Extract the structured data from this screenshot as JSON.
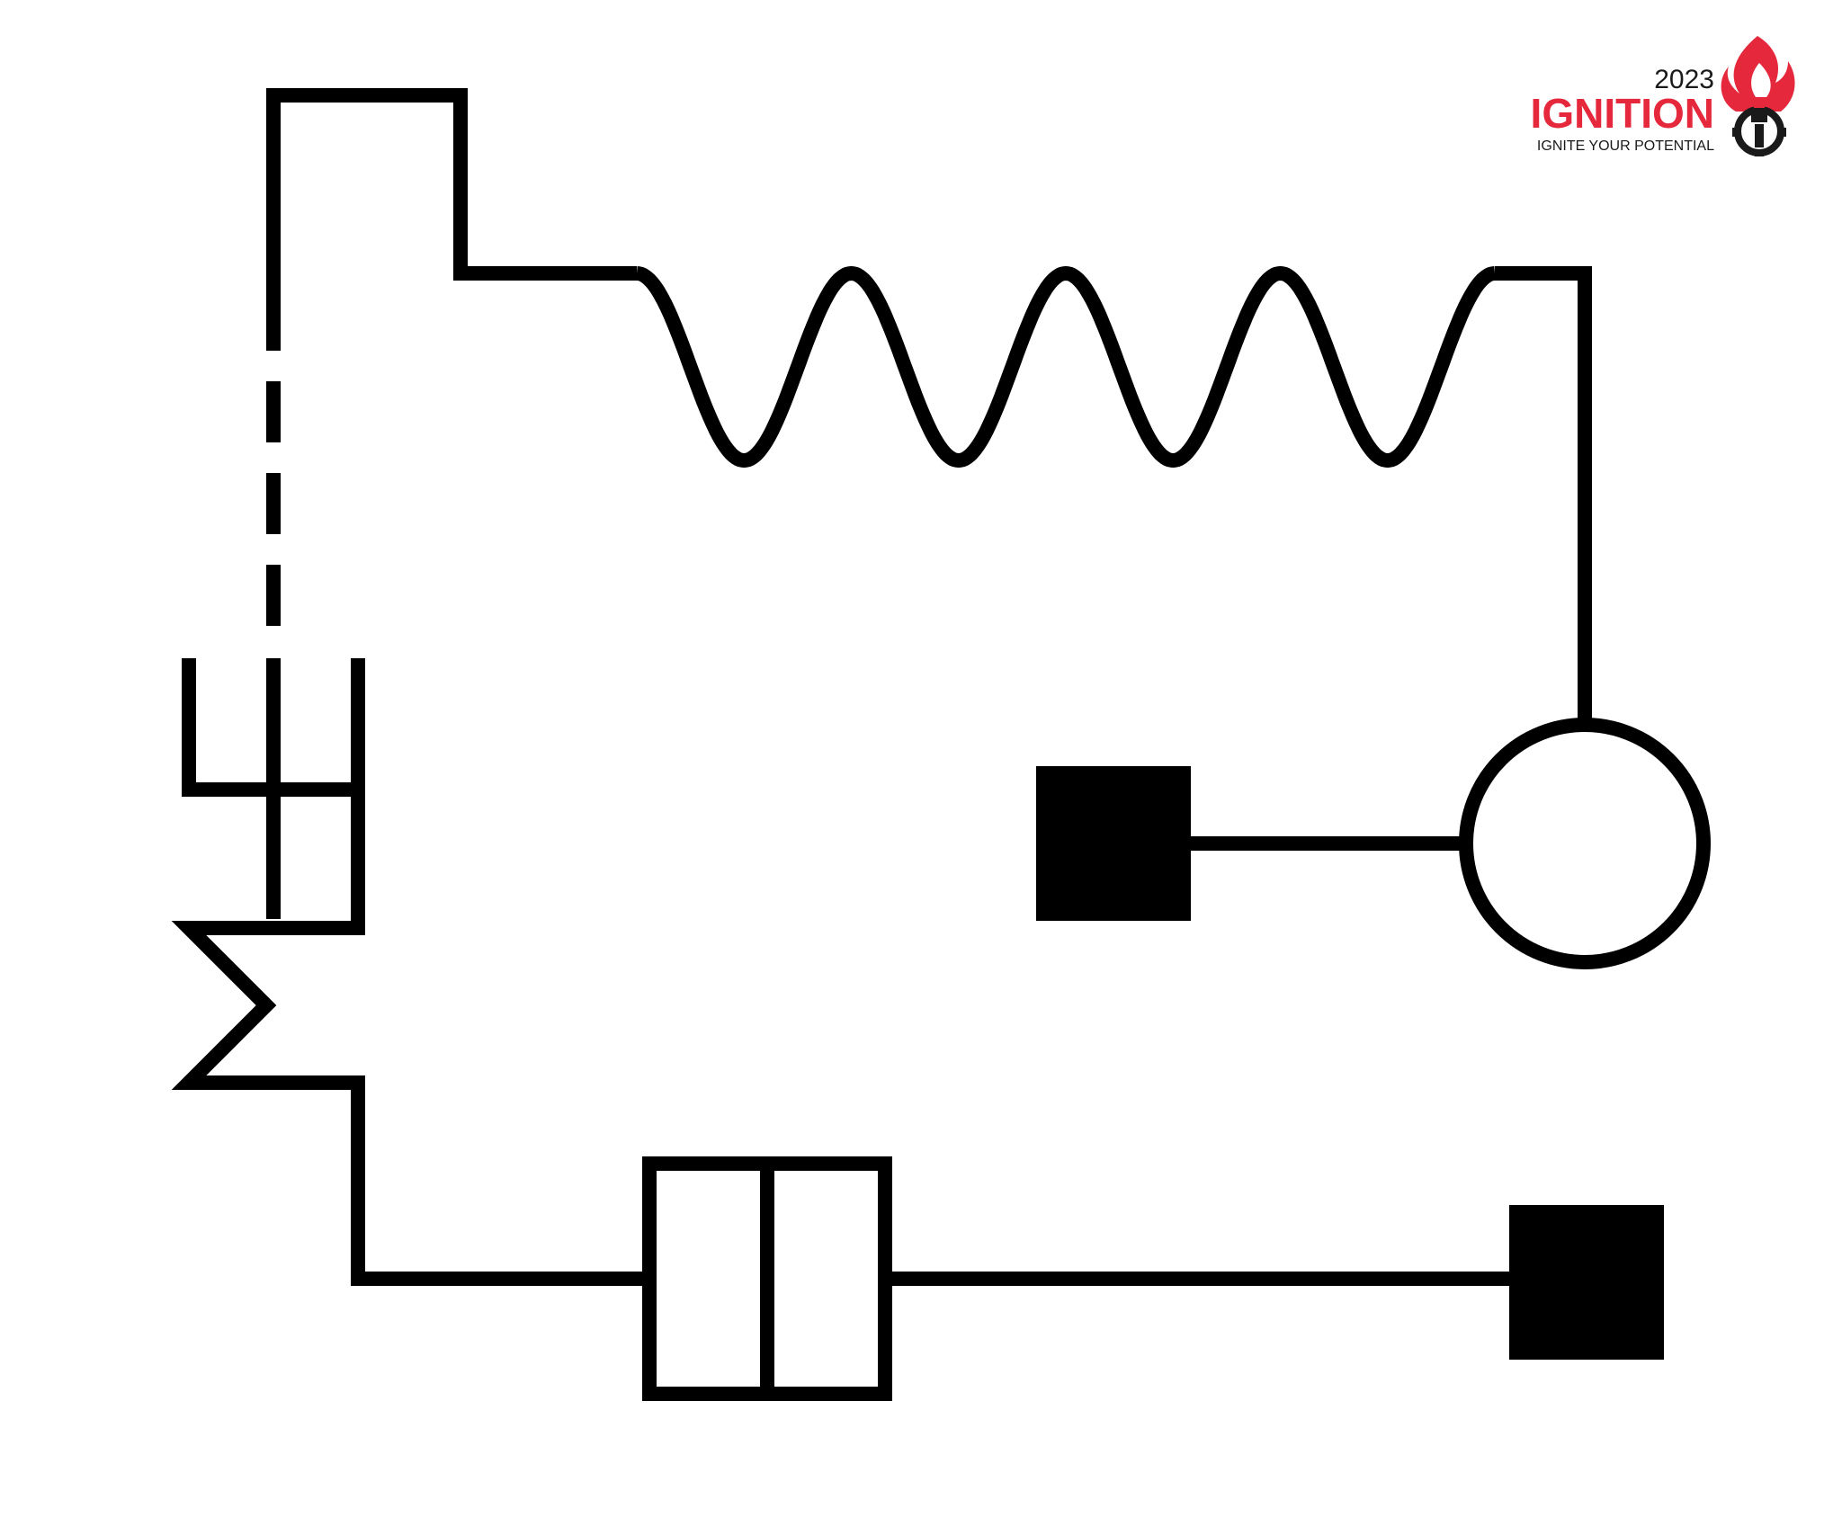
{
  "logo": {
    "year": "2023",
    "name": "IGNITION",
    "tagline": "IGNITE YOUR POTENTIAL",
    "brand_color": "#e5283c",
    "text_color": "#1a1a1a",
    "icon": "flame-spark-plug-gear-icon"
  },
  "diagram": {
    "line_color": "#000000",
    "background": "#ffffff",
    "sine_cycles": 4
  }
}
